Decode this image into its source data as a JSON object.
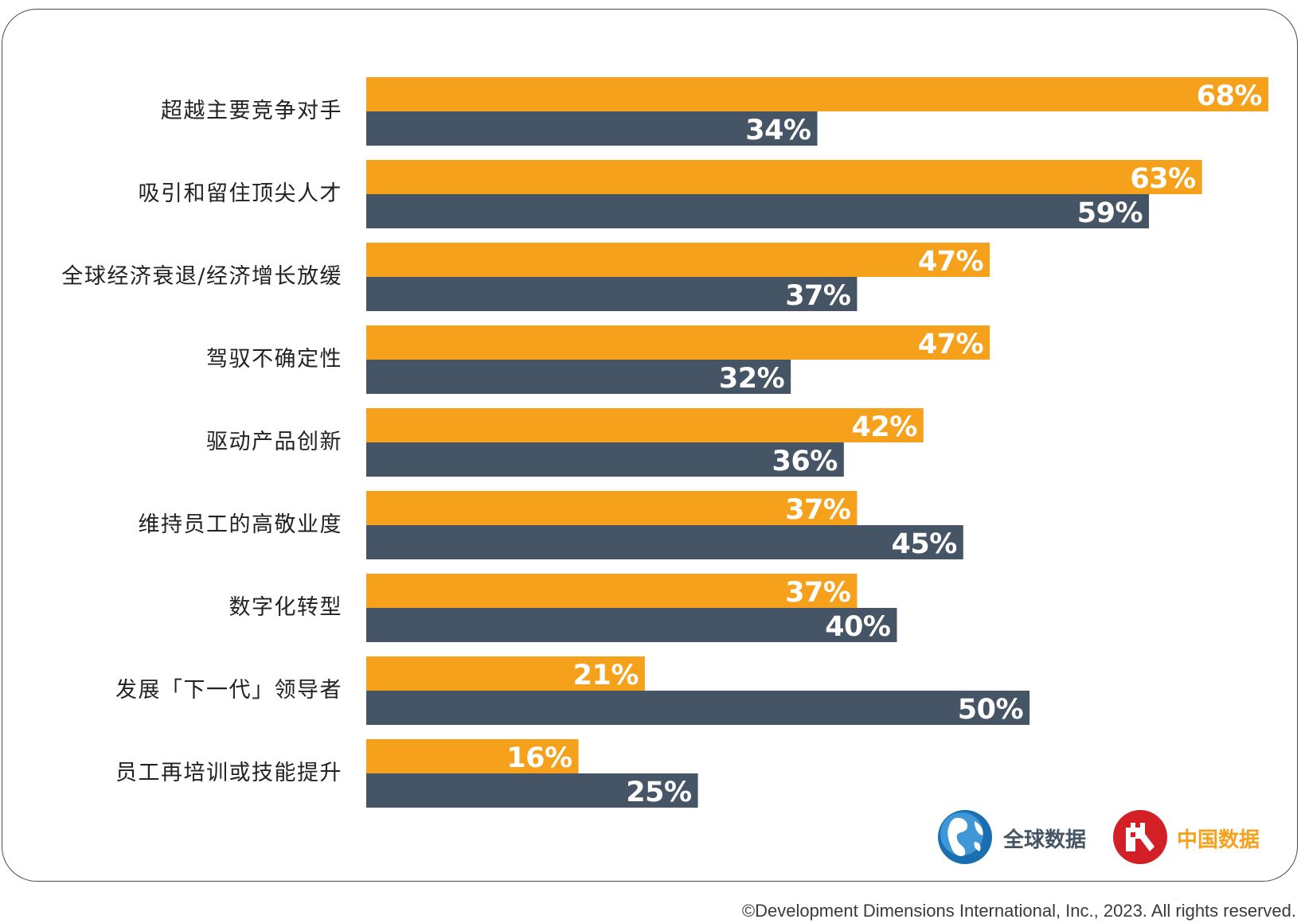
{
  "chart_data": {
    "type": "bar",
    "orientation": "horizontal",
    "categories": [
      "超越主要竞争对手",
      "吸引和留住顶尖人才",
      "全球经济衰退/经济增长放缓",
      "驾驭不确定性",
      "驱动产品创新",
      "维持员工的高敬业度",
      "数字化转型",
      "发展「下一代」领导者",
      "员工再培训或技能提升"
    ],
    "series": [
      {
        "name": "中国数据",
        "color": "#F5A11C",
        "values": [
          68,
          63,
          47,
          47,
          42,
          37,
          37,
          21,
          16
        ]
      },
      {
        "name": "全球数据",
        "color": "#465565",
        "values": [
          34,
          59,
          37,
          32,
          36,
          45,
          40,
          50,
          25
        ]
      }
    ],
    "value_suffix": "%",
    "xlim": [
      0,
      68
    ],
    "grid": false,
    "legend_position": "bottom-right"
  },
  "legend": {
    "global": {
      "label": "全球数据",
      "icon": "globe-icon",
      "color": "#1A6FB0"
    },
    "china": {
      "label": "中国数据",
      "icon": "great-wall-icon",
      "color": "#D32027",
      "text_color": "#F5A11C"
    }
  },
  "copyright": "©Development Dimensions International, Inc., 2023. All rights reserved."
}
